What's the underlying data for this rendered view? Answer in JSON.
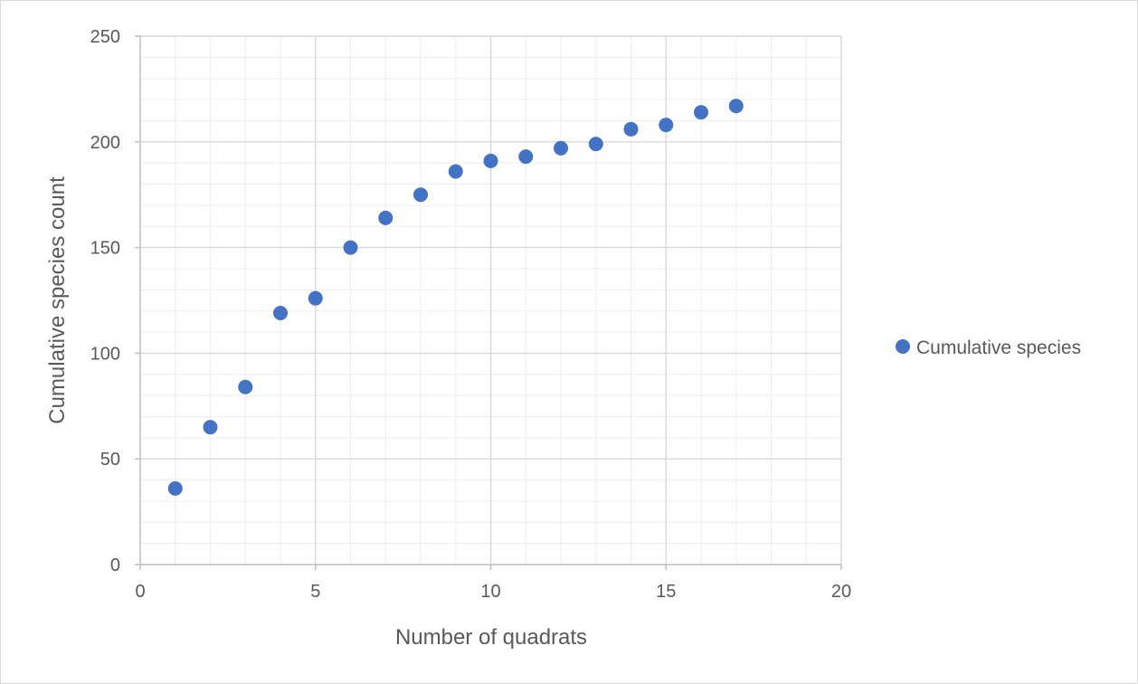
{
  "chart_data": {
    "type": "scatter",
    "xlabel": "Number of quadrats",
    "ylabel": "Cumulative species count",
    "xlim": [
      0,
      20
    ],
    "ylim": [
      0,
      250
    ],
    "x_ticks": [
      0,
      5,
      10,
      15,
      20
    ],
    "y_ticks": [
      0,
      50,
      100,
      150,
      200,
      250
    ],
    "x_tick_labels": [
      "0",
      "5",
      "10",
      "15",
      "20"
    ],
    "y_tick_labels": [
      "0",
      "50",
      "100",
      "150",
      "200",
      "250"
    ],
    "x_minor_step": 1,
    "y_minor_step": 10,
    "grid": true,
    "legend_position": "right",
    "series": [
      {
        "name": "Cumulative species",
        "color": "#4472c4",
        "marker": "circle",
        "x": [
          1,
          2,
          3,
          4,
          5,
          6,
          7,
          8,
          9,
          10,
          11,
          12,
          13,
          14,
          15,
          16,
          17
        ],
        "y": [
          36,
          65,
          84,
          119,
          126,
          150,
          164,
          175,
          186,
          191,
          193,
          197,
          199,
          206,
          208,
          214,
          217
        ]
      }
    ]
  },
  "colors": {
    "major_grid": "#d9d9d9",
    "minor_grid": "#f0f0f0",
    "axis_line": "#bfbfbf",
    "text": "#595959",
    "border": "#d9d9d9"
  }
}
